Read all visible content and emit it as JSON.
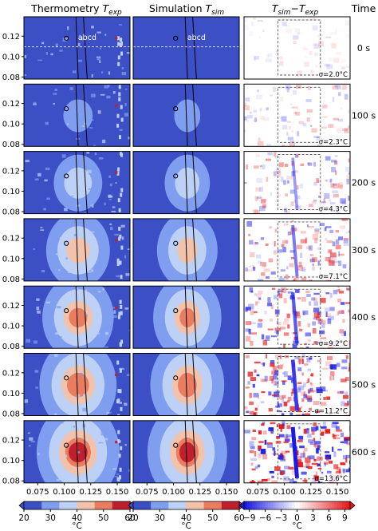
{
  "figure": {
    "columns": [
      {
        "title_main": "Thermometry",
        "title_sym": "T",
        "title_sub": "exp"
      },
      {
        "title_main": "Simulation",
        "title_sym": "T",
        "title_sub": "sim"
      },
      {
        "title_main": "",
        "title_sym": "T",
        "title_sub": "sim",
        "title_minus": "−",
        "title_sym2": "T",
        "title_sub2": "exp"
      }
    ],
    "time_header": "Time",
    "times": [
      "0 s",
      "100 s",
      "200 s",
      "300 s",
      "400 s",
      "500 s",
      "600 s"
    ],
    "sigmas": [
      "σ=2.0°C",
      "σ=2.3°C",
      "σ=4.3°C",
      "σ=7.1°C",
      "σ=9.2°C",
      "σ=11.2°C",
      "σ=13.6°C"
    ],
    "marker_letters": "abcd",
    "colors": {
      "cold": "#3c4fc4",
      "level1": "#7f9ef0",
      "level2": "#bdd0f5",
      "level3": "#f2c3aa",
      "level4": "#ea7d5f",
      "hot": "#bf1f2e",
      "diff_neg": "#1a1ae6",
      "diff_pos": "#e61a1a",
      "diff_zero": "#ffffff"
    }
  },
  "chart_data": {
    "type": "heatmap",
    "xticks": [
      "0.075",
      "0.100",
      "0.125",
      "0.150"
    ],
    "yticks": [
      "0.12",
      "0.10",
      "0.08"
    ],
    "xlim": [
      0.062,
      0.162
    ],
    "ylim": [
      0.078,
      0.139
    ],
    "colorbars": [
      {
        "label": "°C",
        "ticks": [
          "20",
          "30",
          "40",
          "50",
          "60"
        ],
        "range": [
          20,
          60
        ]
      },
      {
        "label": "°C",
        "ticks": [
          "20",
          "30",
          "40",
          "50",
          "60"
        ],
        "range": [
          20,
          60
        ]
      },
      {
        "label": "°C",
        "ticks": [
          "−9",
          "−6",
          "−3",
          "0",
          "3",
          "6",
          "9"
        ],
        "range": [
          -10,
          10
        ]
      }
    ],
    "hotspot_peak_estimate_c": [
      22,
      32,
      42,
      50,
      54,
      57,
      60
    ]
  }
}
